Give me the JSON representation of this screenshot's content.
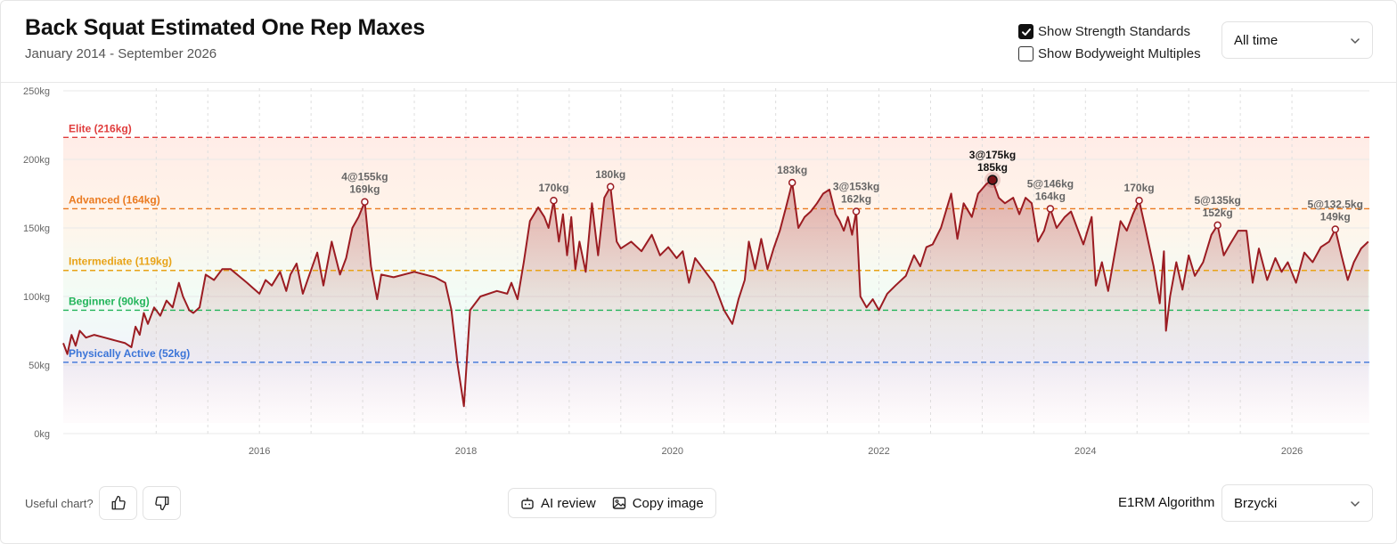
{
  "header": {
    "title": "Back Squat Estimated One Rep Maxes",
    "subtitle": "January 2014 - September 2026",
    "show_standards_label": "Show Strength Standards",
    "show_standards_checked": true,
    "show_bw_label": "Show Bodyweight Multiples",
    "show_bw_checked": false,
    "range_value": "All time"
  },
  "footer": {
    "useful_label": "Useful chart?",
    "ai_review_label": "AI review",
    "copy_image_label": "Copy image",
    "algo_label": "E1RM Algorithm",
    "algo_value": "Brzycki"
  },
  "chart_data": {
    "type": "line",
    "title": "Back Squat Estimated One Rep Maxes",
    "ylim": [
      0,
      250
    ],
    "xlim": [
      2014.1,
      2026.75
    ],
    "y_ticks": [
      0,
      50,
      100,
      150,
      200,
      250
    ],
    "y_tick_labels": [
      "0kg",
      "50kg",
      "100kg",
      "150kg",
      "200kg",
      "250kg"
    ],
    "x_ticks": [
      2016,
      2018,
      2020,
      2022,
      2024,
      2026
    ],
    "x_tick_labels": [
      "2016",
      "2018",
      "2020",
      "2022",
      "2024",
      "2026"
    ],
    "grid": true,
    "line_color": "#9b1c22",
    "standards": [
      {
        "label": "Elite (216kg)",
        "value": 216,
        "color": "#e03c3c"
      },
      {
        "label": "Advanced (164kg)",
        "value": 164,
        "color": "#ea7a20"
      },
      {
        "label": "Intermediate (119kg)",
        "value": 119,
        "color": "#e8a317"
      },
      {
        "label": "Beginner (90kg)",
        "value": 90,
        "color": "#22b45a"
      },
      {
        "label": "Physically Active (52kg)",
        "value": 52,
        "color": "#3a74d8"
      }
    ],
    "series": [
      {
        "values": [
          [
            2014.1,
            66
          ],
          [
            2014.14,
            58
          ],
          [
            2014.18,
            72
          ],
          [
            2014.22,
            64
          ],
          [
            2014.26,
            75
          ],
          [
            2014.32,
            70
          ],
          [
            2014.4,
            72
          ],
          [
            2014.5,
            70
          ],
          [
            2014.6,
            68
          ],
          [
            2014.7,
            66
          ],
          [
            2014.76,
            63
          ],
          [
            2014.8,
            78
          ],
          [
            2014.84,
            72
          ],
          [
            2014.88,
            88
          ],
          [
            2014.92,
            80
          ],
          [
            2014.98,
            92
          ],
          [
            2015.04,
            86
          ],
          [
            2015.1,
            97
          ],
          [
            2015.16,
            92
          ],
          [
            2015.22,
            110
          ],
          [
            2015.26,
            100
          ],
          [
            2015.32,
            90
          ],
          [
            2015.36,
            88
          ],
          [
            2015.42,
            92
          ],
          [
            2015.48,
            116
          ],
          [
            2015.56,
            112
          ],
          [
            2015.64,
            120
          ],
          [
            2015.72,
            120
          ],
          [
            2015.8,
            115
          ],
          [
            2015.88,
            110
          ],
          [
            2015.94,
            106
          ],
          [
            2016.0,
            102
          ],
          [
            2016.06,
            112
          ],
          [
            2016.12,
            108
          ],
          [
            2016.2,
            118
          ],
          [
            2016.26,
            104
          ],
          [
            2016.3,
            116
          ],
          [
            2016.36,
            124
          ],
          [
            2016.42,
            102
          ],
          [
            2016.48,
            115
          ],
          [
            2016.56,
            132
          ],
          [
            2016.62,
            108
          ],
          [
            2016.7,
            140
          ],
          [
            2016.78,
            116
          ],
          [
            2016.84,
            128
          ],
          [
            2016.9,
            150
          ],
          [
            2016.96,
            158
          ],
          [
            2017.02,
            169
          ],
          [
            2017.08,
            122
          ],
          [
            2017.14,
            98
          ],
          [
            2017.18,
            116
          ],
          [
            2017.3,
            114
          ],
          [
            2017.5,
            118
          ],
          [
            2017.7,
            114
          ],
          [
            2017.8,
            110
          ],
          [
            2017.86,
            90
          ],
          [
            2017.92,
            50
          ],
          [
            2017.98,
            20
          ],
          [
            2018.04,
            90
          ],
          [
            2018.14,
            100
          ],
          [
            2018.3,
            104
          ],
          [
            2018.4,
            102
          ],
          [
            2018.44,
            110
          ],
          [
            2018.5,
            98
          ],
          [
            2018.56,
            125
          ],
          [
            2018.62,
            155
          ],
          [
            2018.7,
            165
          ],
          [
            2018.76,
            158
          ],
          [
            2018.8,
            150
          ],
          [
            2018.85,
            170
          ],
          [
            2018.9,
            140
          ],
          [
            2018.94,
            160
          ],
          [
            2018.98,
            130
          ],
          [
            2019.02,
            158
          ],
          [
            2019.06,
            120
          ],
          [
            2019.1,
            140
          ],
          [
            2019.16,
            118
          ],
          [
            2019.22,
            168
          ],
          [
            2019.28,
            130
          ],
          [
            2019.34,
            172
          ],
          [
            2019.4,
            180
          ],
          [
            2019.46,
            140
          ],
          [
            2019.5,
            135
          ],
          [
            2019.6,
            140
          ],
          [
            2019.7,
            133
          ],
          [
            2019.8,
            145
          ],
          [
            2019.88,
            130
          ],
          [
            2019.96,
            136
          ],
          [
            2020.04,
            128
          ],
          [
            2020.1,
            133
          ],
          [
            2020.16,
            110
          ],
          [
            2020.22,
            128
          ],
          [
            2020.3,
            120
          ],
          [
            2020.4,
            110
          ],
          [
            2020.5,
            90
          ],
          [
            2020.58,
            80
          ],
          [
            2020.64,
            98
          ],
          [
            2020.7,
            112
          ],
          [
            2020.74,
            140
          ],
          [
            2020.8,
            120
          ],
          [
            2020.86,
            142
          ],
          [
            2020.92,
            120
          ],
          [
            2020.98,
            135
          ],
          [
            2021.04,
            148
          ],
          [
            2021.1,
            165
          ],
          [
            2021.16,
            183
          ],
          [
            2021.22,
            150
          ],
          [
            2021.28,
            158
          ],
          [
            2021.34,
            162
          ],
          [
            2021.4,
            168
          ],
          [
            2021.46,
            175
          ],
          [
            2021.52,
            178
          ],
          [
            2021.58,
            160
          ],
          [
            2021.62,
            155
          ],
          [
            2021.66,
            148
          ],
          [
            2021.7,
            158
          ],
          [
            2021.74,
            145
          ],
          [
            2021.78,
            162
          ],
          [
            2021.82,
            100
          ],
          [
            2021.88,
            92
          ],
          [
            2021.94,
            98
          ],
          [
            2022.0,
            90
          ],
          [
            2022.08,
            102
          ],
          [
            2022.16,
            108
          ],
          [
            2022.26,
            115
          ],
          [
            2022.34,
            130
          ],
          [
            2022.4,
            122
          ],
          [
            2022.46,
            136
          ],
          [
            2022.52,
            138
          ],
          [
            2022.6,
            150
          ],
          [
            2022.66,
            165
          ],
          [
            2022.7,
            175
          ],
          [
            2022.76,
            142
          ],
          [
            2022.82,
            168
          ],
          [
            2022.9,
            158
          ],
          [
            2022.96,
            175
          ],
          [
            2023.04,
            182
          ],
          [
            2023.1,
            185
          ],
          [
            2023.16,
            172
          ],
          [
            2023.22,
            168
          ],
          [
            2023.3,
            172
          ],
          [
            2023.36,
            160
          ],
          [
            2023.42,
            172
          ],
          [
            2023.48,
            168
          ],
          [
            2023.54,
            140
          ],
          [
            2023.6,
            148
          ],
          [
            2023.66,
            164
          ],
          [
            2023.72,
            150
          ],
          [
            2023.8,
            158
          ],
          [
            2023.86,
            162
          ],
          [
            2023.92,
            150
          ],
          [
            2023.98,
            138
          ],
          [
            2024.06,
            158
          ],
          [
            2024.1,
            108
          ],
          [
            2024.16,
            125
          ],
          [
            2024.22,
            104
          ],
          [
            2024.28,
            130
          ],
          [
            2024.34,
            155
          ],
          [
            2024.4,
            148
          ],
          [
            2024.46,
            160
          ],
          [
            2024.52,
            170
          ],
          [
            2024.58,
            150
          ],
          [
            2024.66,
            122
          ],
          [
            2024.72,
            95
          ],
          [
            2024.76,
            133
          ],
          [
            2024.78,
            75
          ],
          [
            2024.82,
            100
          ],
          [
            2024.88,
            125
          ],
          [
            2024.94,
            105
          ],
          [
            2025.0,
            130
          ],
          [
            2025.06,
            115
          ],
          [
            2025.14,
            125
          ],
          [
            2025.22,
            145
          ],
          [
            2025.28,
            152
          ],
          [
            2025.34,
            130
          ],
          [
            2025.4,
            138
          ],
          [
            2025.48,
            148
          ],
          [
            2025.56,
            148
          ],
          [
            2025.62,
            110
          ],
          [
            2025.68,
            135
          ],
          [
            2025.76,
            112
          ],
          [
            2025.84,
            128
          ],
          [
            2025.9,
            118
          ],
          [
            2025.96,
            125
          ],
          [
            2026.04,
            110
          ],
          [
            2026.12,
            132
          ],
          [
            2026.2,
            125
          ],
          [
            2026.28,
            136
          ],
          [
            2026.36,
            140
          ],
          [
            2026.42,
            149
          ],
          [
            2026.48,
            130
          ],
          [
            2026.54,
            112
          ],
          [
            2026.6,
            125
          ],
          [
            2026.67,
            135
          ],
          [
            2026.74,
            140
          ]
        ]
      }
    ],
    "annotations": [
      {
        "x": 2017.02,
        "y": 169,
        "lines": [
          "4@155kg",
          "169kg"
        ]
      },
      {
        "x": 2018.85,
        "y": 170,
        "lines": [
          "170kg"
        ]
      },
      {
        "x": 2019.4,
        "y": 180,
        "lines": [
          "180kg"
        ]
      },
      {
        "x": 2021.16,
        "y": 183,
        "lines": [
          "183kg"
        ]
      },
      {
        "x": 2021.78,
        "y": 162,
        "lines": [
          "3@153kg",
          "162kg"
        ]
      },
      {
        "x": 2023.1,
        "y": 185,
        "lines": [
          "3@175kg",
          "185kg"
        ],
        "highlight": true
      },
      {
        "x": 2023.66,
        "y": 164,
        "lines": [
          "5@146kg",
          "164kg"
        ]
      },
      {
        "x": 2024.52,
        "y": 170,
        "lines": [
          "170kg"
        ]
      },
      {
        "x": 2025.28,
        "y": 152,
        "lines": [
          "5@135kg",
          "152kg"
        ]
      },
      {
        "x": 2026.42,
        "y": 149,
        "lines": [
          "5@132.5kg",
          "149kg"
        ]
      }
    ]
  }
}
